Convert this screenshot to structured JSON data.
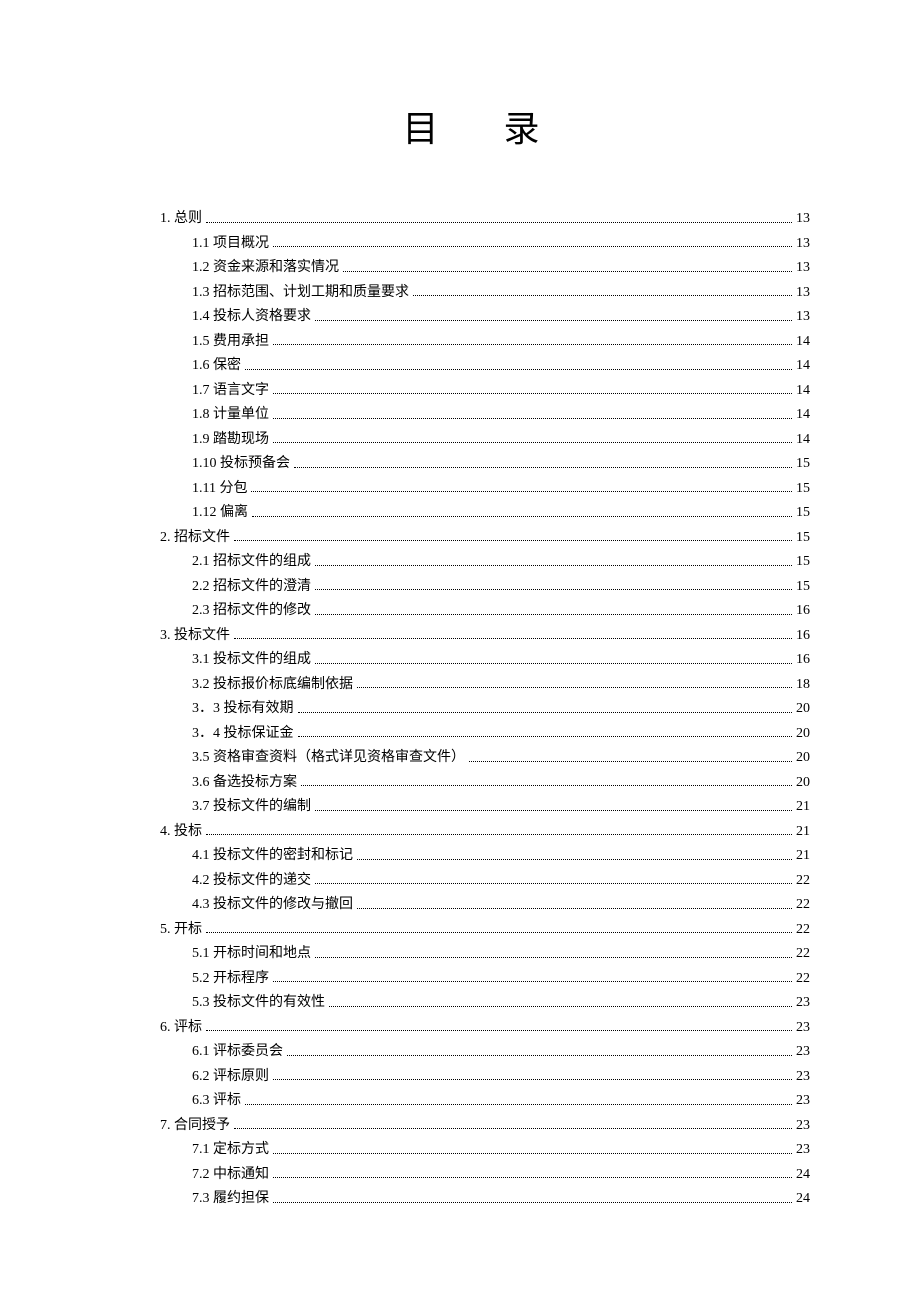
{
  "title": "目 录",
  "entries": [
    {
      "level": 1,
      "label": "1.  总则",
      "page": "13"
    },
    {
      "level": 2,
      "label": "1.1  项目概况",
      "page": "13"
    },
    {
      "level": 2,
      "label": "1.2  资金来源和落实情况",
      "page": "13"
    },
    {
      "level": 2,
      "label": "1.3  招标范围、计划工期和质量要求",
      "page": "13"
    },
    {
      "level": 2,
      "label": "1.4  投标人资格要求",
      "page": "13"
    },
    {
      "level": 2,
      "label": "1.5  费用承担",
      "page": "14"
    },
    {
      "level": 2,
      "label": "1.6  保密",
      "page": "14"
    },
    {
      "level": 2,
      "label": "1.7  语言文字",
      "page": "14"
    },
    {
      "level": 2,
      "label": "1.8  计量单位",
      "page": "14"
    },
    {
      "level": 2,
      "label": "1.9  踏勘现场",
      "page": "14"
    },
    {
      "level": 2,
      "label": "1.10  投标预备会",
      "page": "15"
    },
    {
      "level": 2,
      "label": "1.11  分包",
      "page": "15"
    },
    {
      "level": 2,
      "label": "1.12  偏离",
      "page": "15"
    },
    {
      "level": 1,
      "label": "2.  招标文件",
      "page": "15"
    },
    {
      "level": 2,
      "label": "2.1  招标文件的组成",
      "page": "15"
    },
    {
      "level": 2,
      "label": "2.2  招标文件的澄清",
      "page": "15"
    },
    {
      "level": 2,
      "label": "2.3  招标文件的修改",
      "page": "16"
    },
    {
      "level": 1,
      "label": "3.  投标文件",
      "page": "16"
    },
    {
      "level": 2,
      "label": "3.1  投标文件的组成",
      "page": "16"
    },
    {
      "level": 2,
      "label": "3.2  投标报价标底编制依据",
      "page": "18"
    },
    {
      "level": 2,
      "label": "3．3  投标有效期",
      "page": "20"
    },
    {
      "level": 2,
      "label": "3．4  投标保证金",
      "page": "20"
    },
    {
      "level": 2,
      "label": "3.5  资格审查资料（格式详见资格审查文件）",
      "page": "20"
    },
    {
      "level": 2,
      "label": "3.6  备选投标方案",
      "page": "20"
    },
    {
      "level": 2,
      "label": "3.7  投标文件的编制",
      "page": "21"
    },
    {
      "level": 1,
      "label": "4.  投标",
      "page": "21"
    },
    {
      "level": 2,
      "label": "4.1  投标文件的密封和标记",
      "page": "21"
    },
    {
      "level": 2,
      "label": "4.2  投标文件的递交",
      "page": "22"
    },
    {
      "level": 2,
      "label": "4.3  投标文件的修改与撤回",
      "page": "22"
    },
    {
      "level": 1,
      "label": "5.  开标",
      "page": "22"
    },
    {
      "level": 2,
      "label": "5.1  开标时间和地点",
      "page": "22"
    },
    {
      "level": 2,
      "label": "5.2  开标程序",
      "page": "22"
    },
    {
      "level": 2,
      "label": "5.3  投标文件的有效性",
      "page": "23"
    },
    {
      "level": 1,
      "label": "6.  评标",
      "page": "23"
    },
    {
      "level": 2,
      "label": "6.1  评标委员会",
      "page": "23"
    },
    {
      "level": 2,
      "label": "6.2  评标原则",
      "page": "23"
    },
    {
      "level": 2,
      "label": "6.3  评标",
      "page": "23"
    },
    {
      "level": 1,
      "label": "7.  合同授予",
      "page": "23"
    },
    {
      "level": 2,
      "label": "7.1  定标方式",
      "page": "23"
    },
    {
      "level": 2,
      "label": "7.2  中标通知",
      "page": "24"
    },
    {
      "level": 2,
      "label": "7.3  履约担保",
      "page": "24"
    }
  ]
}
